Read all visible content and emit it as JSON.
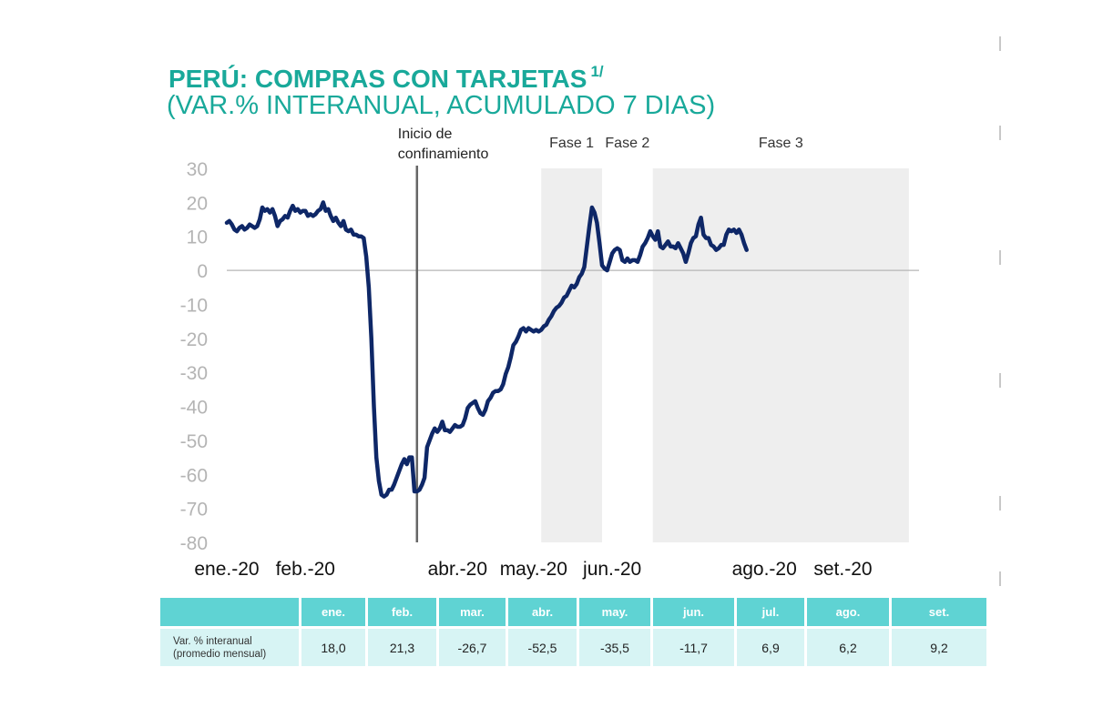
{
  "header": {
    "title": "PERÚ: COMPRAS CON TARJETAS",
    "title_sup": "1/",
    "subtitle": "(VAR.% INTERANUAL, ACUMULADO 7 DIAS)"
  },
  "colors": {
    "title": "#19a99a",
    "line": "#0e2767",
    "phase_shade": "#eeeeee",
    "axis_text": "#b4b4b4",
    "table_header_bg": "#5fd3d3",
    "table_row_bg": "#d7f4f4",
    "event_line": "#666666"
  },
  "chart_data": {
    "type": "line",
    "title": "PERÚ: COMPRAS CON TARJETAS 1/",
    "subtitle": "(VAR.% INTERANUAL, ACUMULADO 7 DIAS)",
    "xlabel": "",
    "ylabel": "",
    "ylim": [
      -80,
      30
    ],
    "yticks": [
      30,
      20,
      10,
      0,
      -10,
      -20,
      -30,
      -40,
      -50,
      -60,
      -70,
      -80
    ],
    "xlim": [
      "2020-01-01",
      "2020-09-30"
    ],
    "xtick_labels": [
      {
        "date": "2020-01-01",
        "label": "ene.-20"
      },
      {
        "date": "2020-02-01",
        "label": "feb.-20"
      },
      {
        "date": "2020-04-01",
        "label": "abr.-20"
      },
      {
        "date": "2020-05-01",
        "label": "may.-20"
      },
      {
        "date": "2020-06-01",
        "label": "jun.-20"
      },
      {
        "date": "2020-07-31",
        "label": "ago.-20"
      },
      {
        "date": "2020-08-31",
        "label": "set.-20"
      }
    ],
    "grid": false,
    "zero_line": true,
    "legend": "none",
    "event": {
      "date": "2020-03-16",
      "label_lines": [
        "Inicio de",
        "confinamiento"
      ]
    },
    "phases": [
      {
        "label": "Fase 1",
        "start": "2020-05-04",
        "end": "2020-05-28"
      },
      {
        "label": "Fase 2",
        "start": "2020-05-28",
        "end": "2020-06-17",
        "shaded": false
      },
      {
        "label": "Fase 3",
        "start": "2020-06-17",
        "end": "2020-09-26"
      }
    ],
    "series": [
      {
        "points": [
          [
            "2020-01-01",
            14.0
          ],
          [
            "2020-01-02",
            14.5
          ],
          [
            "2020-01-03",
            13.5
          ],
          [
            "2020-01-04",
            12.0
          ],
          [
            "2020-01-05",
            11.5
          ],
          [
            "2020-01-06",
            12.5
          ],
          [
            "2020-01-07",
            13.0
          ],
          [
            "2020-01-08",
            12.0
          ],
          [
            "2020-01-09",
            12.5
          ],
          [
            "2020-01-10",
            13.5
          ],
          [
            "2020-01-11",
            13.0
          ],
          [
            "2020-01-12",
            12.5
          ],
          [
            "2020-01-13",
            13.0
          ],
          [
            "2020-01-14",
            15.0
          ],
          [
            "2020-01-15",
            18.5
          ],
          [
            "2020-01-16",
            17.5
          ],
          [
            "2020-01-17",
            18.0
          ],
          [
            "2020-01-18",
            17.0
          ],
          [
            "2020-01-19",
            18.0
          ],
          [
            "2020-01-20",
            16.0
          ],
          [
            "2020-01-21",
            13.0
          ],
          [
            "2020-01-22",
            14.5
          ],
          [
            "2020-01-23",
            15.0
          ],
          [
            "2020-01-24",
            16.0
          ],
          [
            "2020-01-25",
            15.5
          ],
          [
            "2020-01-26",
            17.5
          ],
          [
            "2020-01-27",
            19.0
          ],
          [
            "2020-01-28",
            17.5
          ],
          [
            "2020-01-29",
            18.0
          ],
          [
            "2020-01-30",
            17.0
          ],
          [
            "2020-01-31",
            17.5
          ],
          [
            "2020-02-01",
            17.5
          ],
          [
            "2020-02-02",
            16.0
          ],
          [
            "2020-02-03",
            16.5
          ],
          [
            "2020-02-04",
            16.0
          ],
          [
            "2020-02-05",
            16.5
          ],
          [
            "2020-02-06",
            17.5
          ],
          [
            "2020-02-07",
            18.0
          ],
          [
            "2020-02-08",
            20.0
          ],
          [
            "2020-02-09",
            17.5
          ],
          [
            "2020-02-10",
            18.0
          ],
          [
            "2020-02-11",
            16.0
          ],
          [
            "2020-02-12",
            14.5
          ],
          [
            "2020-02-13",
            15.5
          ],
          [
            "2020-02-14",
            14.0
          ],
          [
            "2020-02-15",
            13.0
          ],
          [
            "2020-02-16",
            14.5
          ],
          [
            "2020-02-17",
            12.0
          ],
          [
            "2020-02-18",
            11.5
          ],
          [
            "2020-02-19",
            12.0
          ],
          [
            "2020-02-20",
            10.5
          ],
          [
            "2020-02-21",
            10.5
          ],
          [
            "2020-02-22",
            10.0
          ],
          [
            "2020-02-23",
            10.0
          ],
          [
            "2020-02-24",
            9.5
          ],
          [
            "2020-02-25",
            4.0
          ],
          [
            "2020-02-26",
            -5.0
          ],
          [
            "2020-02-27",
            -20.0
          ],
          [
            "2020-02-28",
            -40.0
          ],
          [
            "2020-02-29",
            -55.0
          ],
          [
            "2020-03-01",
            -62.0
          ],
          [
            "2020-03-02",
            -66.0
          ],
          [
            "2020-03-03",
            -66.5
          ],
          [
            "2020-03-04",
            -66.0
          ],
          [
            "2020-03-05",
            -64.5
          ],
          [
            "2020-03-06",
            -64.5
          ],
          [
            "2020-03-07",
            -63.0
          ],
          [
            "2020-03-08",
            -61.0
          ],
          [
            "2020-03-09",
            -59.0
          ],
          [
            "2020-03-10",
            -57.0
          ],
          [
            "2020-03-11",
            -55.5
          ],
          [
            "2020-03-12",
            -57.0
          ],
          [
            "2020-03-13",
            -55.0
          ],
          [
            "2020-03-14",
            -55.0
          ],
          [
            "2020-03-15",
            -65.0
          ],
          [
            "2020-03-16",
            -65.0
          ],
          [
            "2020-03-17",
            -64.5
          ],
          [
            "2020-03-18",
            -63.0
          ],
          [
            "2020-03-19",
            -61.0
          ],
          [
            "2020-03-20",
            -52.0
          ],
          [
            "2020-03-21",
            -50.0
          ],
          [
            "2020-03-22",
            -48.0
          ],
          [
            "2020-03-23",
            -46.5
          ],
          [
            "2020-03-24",
            -47.5
          ],
          [
            "2020-03-25",
            -46.5
          ],
          [
            "2020-03-26",
            -44.5
          ],
          [
            "2020-03-27",
            -47.0
          ],
          [
            "2020-03-28",
            -47.0
          ],
          [
            "2020-03-29",
            -47.5
          ],
          [
            "2020-03-30",
            -46.5
          ],
          [
            "2020-03-31",
            -45.5
          ],
          [
            "2020-04-01",
            -46.0
          ],
          [
            "2020-04-02",
            -46.0
          ],
          [
            "2020-04-03",
            -45.5
          ],
          [
            "2020-04-04",
            -43.5
          ],
          [
            "2020-04-05",
            -40.5
          ],
          [
            "2020-04-06",
            -39.5
          ],
          [
            "2020-04-07",
            -39.0
          ],
          [
            "2020-04-08",
            -38.5
          ],
          [
            "2020-04-09",
            -40.5
          ],
          [
            "2020-04-10",
            -42.0
          ],
          [
            "2020-04-11",
            -42.5
          ],
          [
            "2020-04-12",
            -41.0
          ],
          [
            "2020-04-13",
            -38.5
          ],
          [
            "2020-04-14",
            -37.5
          ],
          [
            "2020-04-15",
            -36.0
          ],
          [
            "2020-04-16",
            -35.5
          ],
          [
            "2020-04-17",
            -35.5
          ],
          [
            "2020-04-18",
            -35.0
          ],
          [
            "2020-04-19",
            -33.5
          ],
          [
            "2020-04-20",
            -30.5
          ],
          [
            "2020-04-21",
            -28.5
          ],
          [
            "2020-04-22",
            -25.5
          ],
          [
            "2020-04-23",
            -22.0
          ],
          [
            "2020-04-24",
            -21.0
          ],
          [
            "2020-04-25",
            -19.5
          ],
          [
            "2020-04-26",
            -17.5
          ],
          [
            "2020-04-27",
            -17.0
          ],
          [
            "2020-04-28",
            -18.0
          ],
          [
            "2020-04-29",
            -17.0
          ],
          [
            "2020-04-30",
            -17.5
          ],
          [
            "2020-05-01",
            -18.0
          ],
          [
            "2020-05-02",
            -17.5
          ],
          [
            "2020-05-03",
            -18.0
          ],
          [
            "2020-05-04",
            -17.5
          ],
          [
            "2020-05-05",
            -16.5
          ],
          [
            "2020-05-06",
            -16.0
          ],
          [
            "2020-05-07",
            -14.5
          ],
          [
            "2020-05-08",
            -13.5
          ],
          [
            "2020-05-09",
            -12.0
          ],
          [
            "2020-05-10",
            -11.0
          ],
          [
            "2020-05-11",
            -10.5
          ],
          [
            "2020-05-12",
            -9.5
          ],
          [
            "2020-05-13",
            -8.0
          ],
          [
            "2020-05-14",
            -7.5
          ],
          [
            "2020-05-15",
            -6.0
          ],
          [
            "2020-05-16",
            -4.5
          ],
          [
            "2020-05-17",
            -5.0
          ],
          [
            "2020-05-18",
            -4.0
          ],
          [
            "2020-05-19",
            -2.0
          ],
          [
            "2020-05-20",
            -1.0
          ],
          [
            "2020-05-21",
            1.0
          ],
          [
            "2020-05-22",
            7.0
          ],
          [
            "2020-05-23",
            13.0
          ],
          [
            "2020-05-24",
            18.5
          ],
          [
            "2020-05-25",
            17.0
          ],
          [
            "2020-05-26",
            14.0
          ],
          [
            "2020-05-27",
            8.0
          ],
          [
            "2020-05-28",
            1.5
          ],
          [
            "2020-05-29",
            0.5
          ],
          [
            "2020-05-30",
            0.0
          ],
          [
            "2020-05-31",
            2.5
          ],
          [
            "2020-06-01",
            5.0
          ],
          [
            "2020-06-02",
            6.0
          ],
          [
            "2020-06-03",
            6.5
          ],
          [
            "2020-06-04",
            6.0
          ],
          [
            "2020-06-05",
            3.0
          ],
          [
            "2020-06-06",
            2.5
          ],
          [
            "2020-06-07",
            3.5
          ],
          [
            "2020-06-08",
            2.5
          ],
          [
            "2020-06-09",
            3.0
          ],
          [
            "2020-06-10",
            3.0
          ],
          [
            "2020-06-11",
            2.5
          ],
          [
            "2020-06-12",
            4.5
          ],
          [
            "2020-06-13",
            7.0
          ],
          [
            "2020-06-14",
            8.0
          ],
          [
            "2020-06-15",
            9.5
          ],
          [
            "2020-06-16",
            11.5
          ],
          [
            "2020-06-17",
            10.0
          ],
          [
            "2020-06-18",
            9.0
          ],
          [
            "2020-06-19",
            11.5
          ],
          [
            "2020-06-20",
            7.0
          ],
          [
            "2020-06-21",
            6.5
          ],
          [
            "2020-06-22",
            7.5
          ],
          [
            "2020-06-23",
            8.5
          ],
          [
            "2020-06-24",
            7.0
          ],
          [
            "2020-06-25",
            7.0
          ],
          [
            "2020-06-26",
            6.5
          ],
          [
            "2020-06-27",
            8.0
          ],
          [
            "2020-06-28",
            6.5
          ],
          [
            "2020-06-29",
            5.0
          ],
          [
            "2020-06-30",
            2.5
          ],
          [
            "2020-07-01",
            5.0
          ],
          [
            "2020-07-02",
            8.0
          ],
          [
            "2020-07-03",
            9.5
          ],
          [
            "2020-07-04",
            10.0
          ],
          [
            "2020-07-05",
            13.5
          ],
          [
            "2020-07-06",
            15.5
          ],
          [
            "2020-07-07",
            10.5
          ],
          [
            "2020-07-08",
            9.5
          ],
          [
            "2020-07-09",
            9.5
          ],
          [
            "2020-07-10",
            7.5
          ],
          [
            "2020-07-11",
            7.0
          ],
          [
            "2020-07-12",
            6.0
          ],
          [
            "2020-07-13",
            6.5
          ],
          [
            "2020-07-14",
            7.5
          ],
          [
            "2020-07-15",
            7.5
          ],
          [
            "2020-07-16",
            10.5
          ],
          [
            "2020-07-17",
            12.0
          ],
          [
            "2020-07-18",
            11.5
          ],
          [
            "2020-07-19",
            12.0
          ],
          [
            "2020-07-20",
            11.0
          ],
          [
            "2020-07-21",
            12.0
          ],
          [
            "2020-07-22",
            10.5
          ],
          [
            "2020-07-23",
            8.0
          ],
          [
            "2020-07-24",
            6.0
          ]
        ]
      }
    ]
  },
  "table": {
    "headers": [
      "ene.",
      "feb.",
      "mar.",
      "abr.",
      "may.",
      "jun.",
      "jul.",
      "ago.",
      "set."
    ],
    "row_label_line1": "Var. % interanual",
    "row_label_line2": "(promedio mensual)",
    "values": [
      "18,0",
      "21,3",
      "-26,7",
      "-52,5",
      "-35,5",
      "-11,7",
      "6,9",
      "6,2",
      "9,2"
    ]
  }
}
